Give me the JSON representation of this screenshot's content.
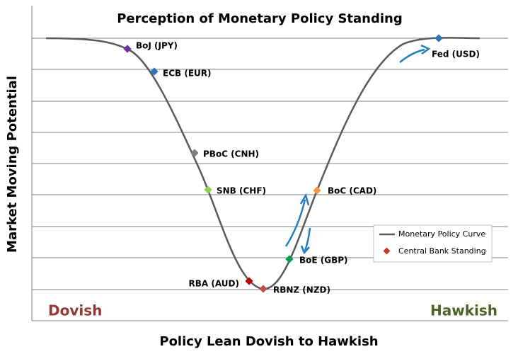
{
  "title": "Perception of Monetary Policy Standing",
  "x_axis_label": "Policy Lean Dovish to Hawkish",
  "y_axis_label": "Market Moving Potential",
  "left_end": {
    "label": "Dovish",
    "color": "#953735"
  },
  "right_end": {
    "label": "Hawkish",
    "color": "#4f6228"
  },
  "curve_color": "#595959",
  "arrow_color": "#1f7fbf",
  "legend": [
    {
      "label": "Monetary Policy Curve",
      "color": "#595959"
    },
    {
      "label": "Central Bank Standing",
      "color": "#c0392b"
    }
  ],
  "banks": [
    {
      "label": "BoJ (JPY)",
      "color": "#7030a0"
    },
    {
      "label": "ECB (EUR)",
      "color": "#2e75b6"
    },
    {
      "label": "PBoC (CNH)",
      "color": "#7f7f7f"
    },
    {
      "label": "SNB (CHF)",
      "color": "#92d050"
    },
    {
      "label": "RBA (AUD)",
      "color": "#c00000"
    },
    {
      "label": "RBNZ (NZD)",
      "color": "#c0504d"
    },
    {
      "label": "BoE (GBP)",
      "color": "#00a050"
    },
    {
      "label": "BoC (CAD)",
      "color": "#f79646"
    },
    {
      "label": "Fed (USD)",
      "color": "#2e75b6"
    }
  ]
}
